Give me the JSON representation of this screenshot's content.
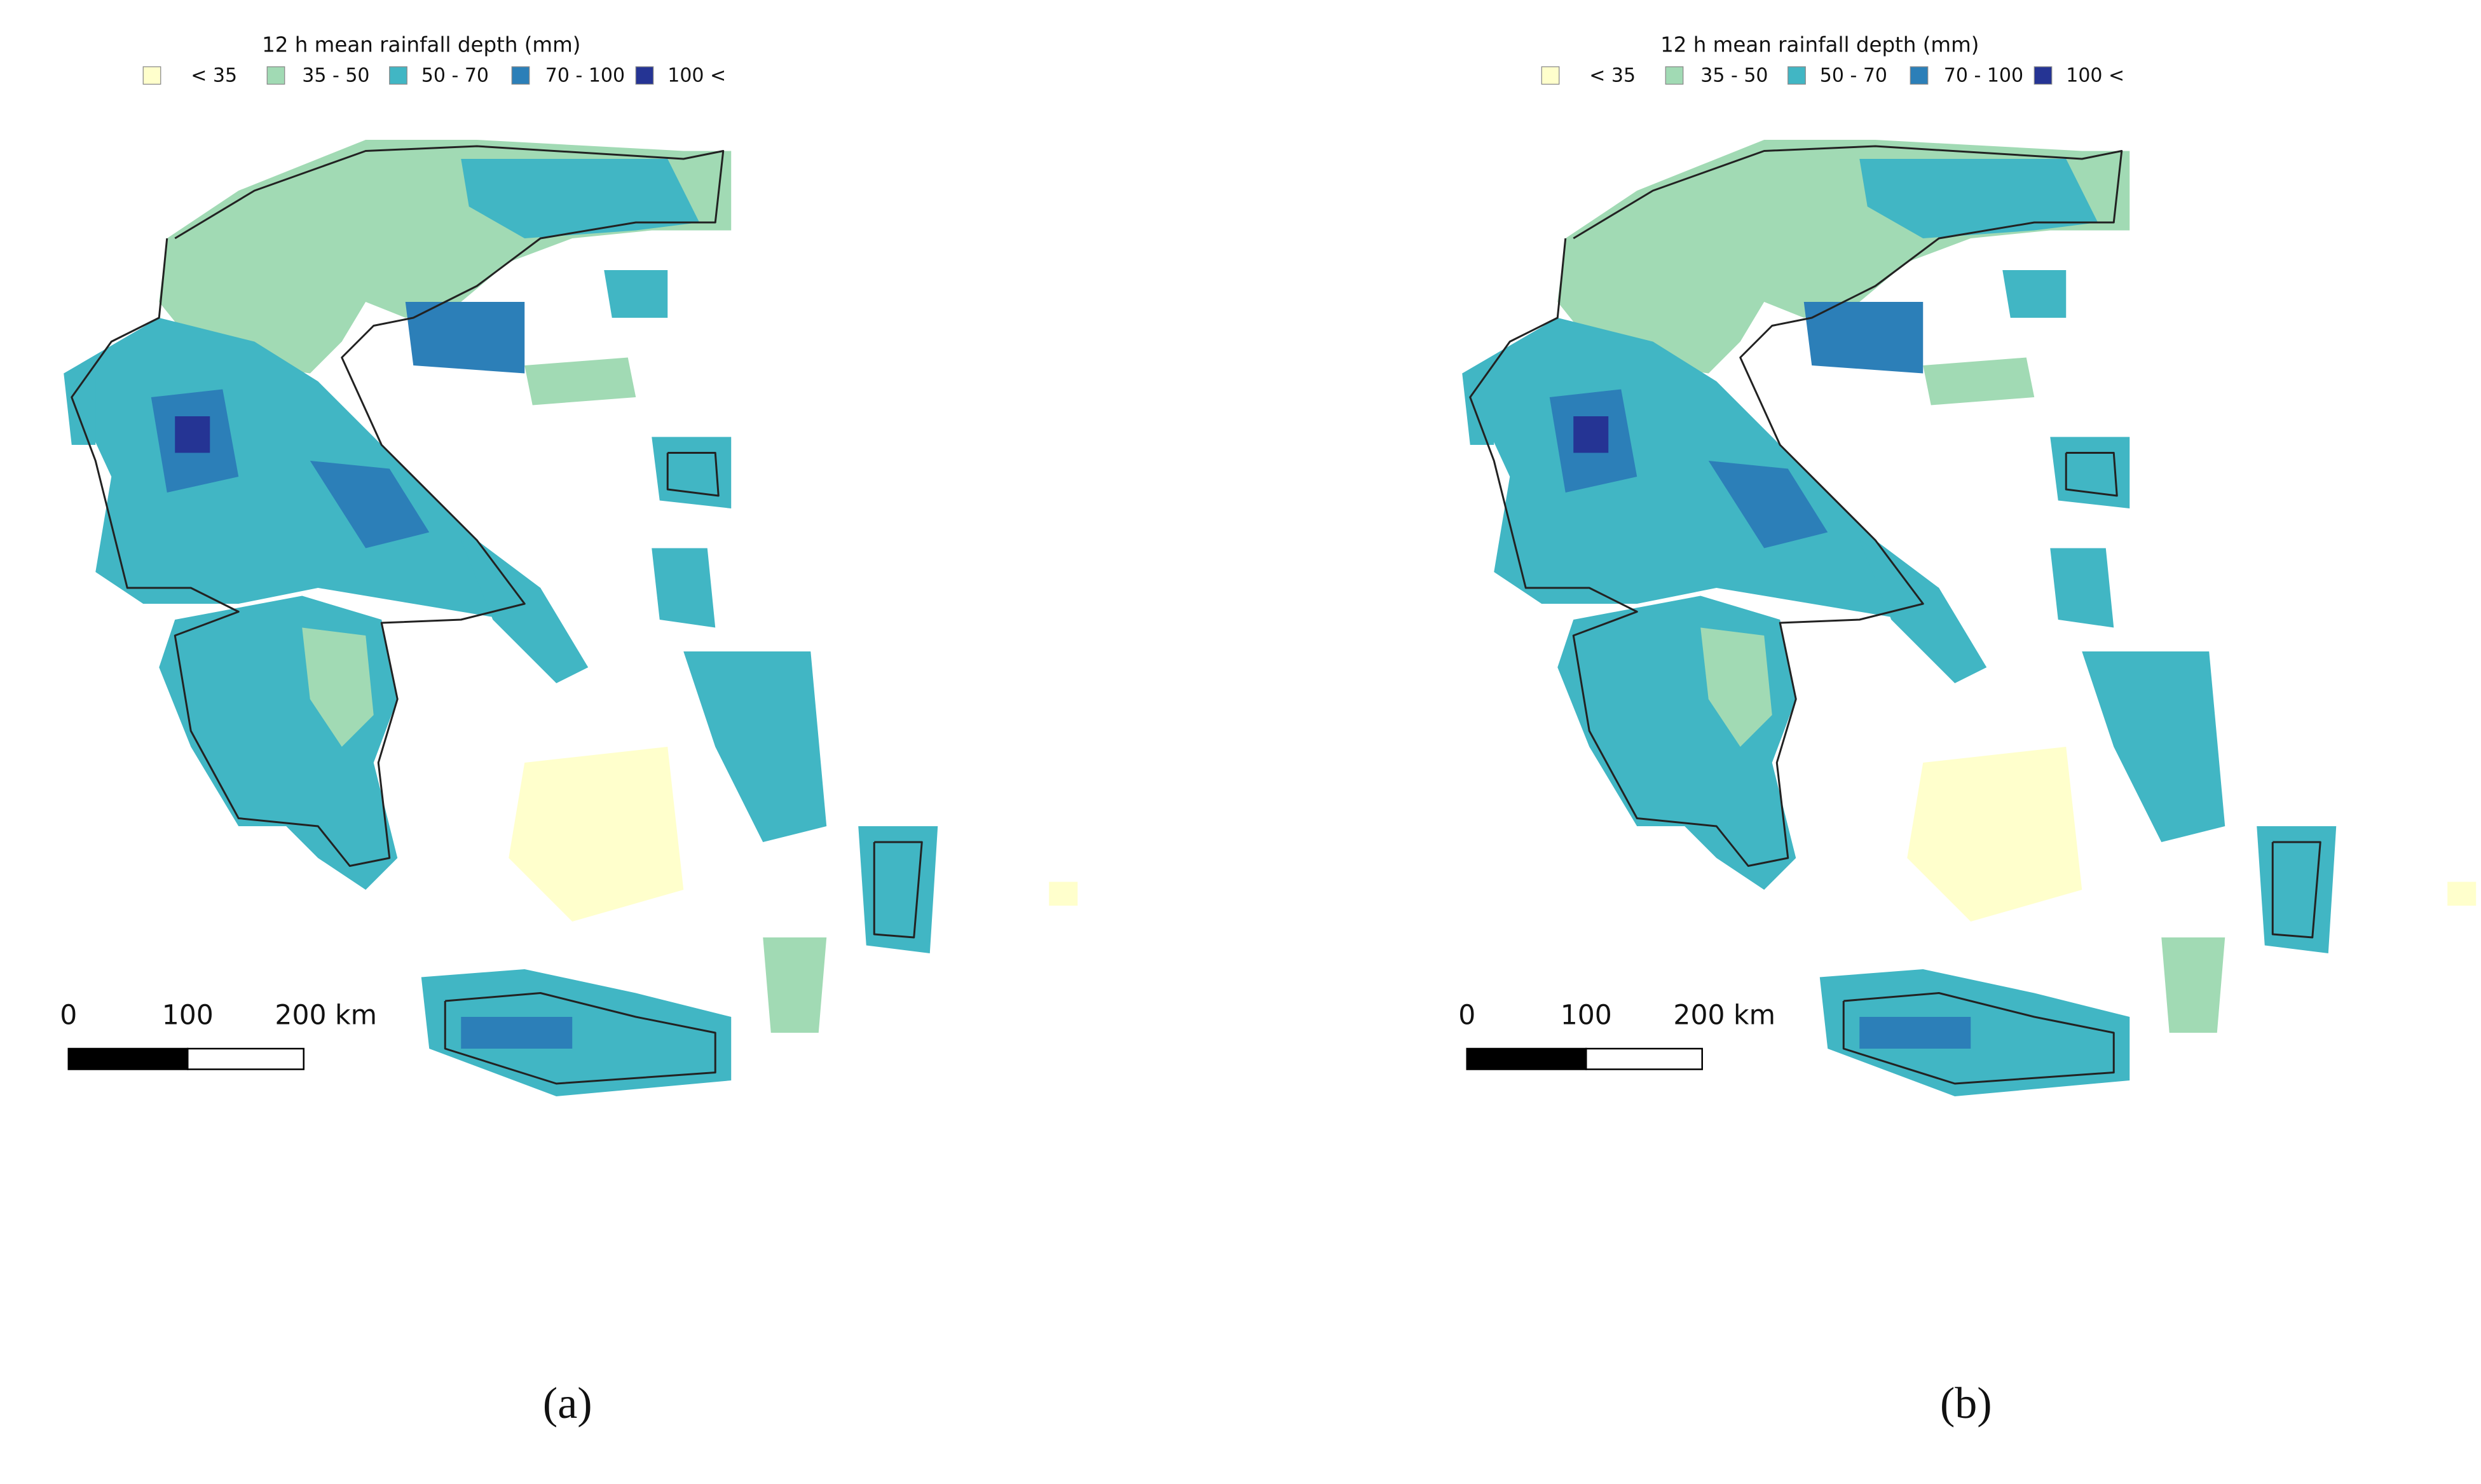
{
  "panels": [
    {
      "legend": {
        "title": "12 h mean rainfall depth (mm)",
        "items": [
          {
            "label": "< 35",
            "color": "#ffffcc"
          },
          {
            "label": "35 - 50",
            "color": "#a1dab4"
          },
          {
            "label": "50 - 70",
            "color": "#41b6c4"
          },
          {
            "label": "70 - 100",
            "color": "#2c7fb8"
          },
          {
            "label": "100 <",
            "color": "#253494"
          }
        ]
      },
      "scale_bar": {
        "labels": [
          "0",
          "100",
          "200 km"
        ]
      },
      "caption": "(a)"
    },
    {
      "legend": {
        "title": "12 h mean rainfall depth (mm)",
        "items": [
          {
            "label": "< 35",
            "color": "#ffffcc"
          },
          {
            "label": "35 - 50",
            "color": "#a1dab4"
          },
          {
            "label": "50 - 70",
            "color": "#41b6c4"
          },
          {
            "label": "70 - 100",
            "color": "#2c7fb8"
          },
          {
            "label": "100 <",
            "color": "#253494"
          }
        ]
      },
      "scale_bar": {
        "labels": [
          "0",
          "100",
          "200 km"
        ]
      },
      "caption": "(b)"
    }
  ]
}
